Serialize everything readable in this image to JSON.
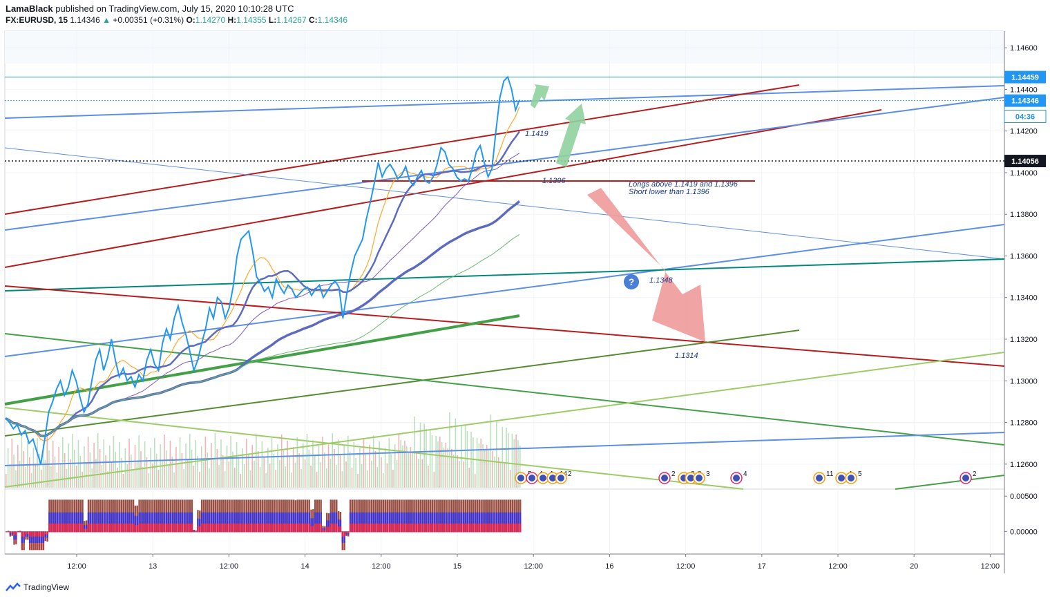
{
  "header": {
    "author": "LamaBlack",
    "published_text": "published on TradingView.com, July 15, 2020 10:10:28 UTC",
    "symbol": "FX:EURUSD, 15",
    "last": "1.14346",
    "change": "+0.00351 (+0.31%)",
    "o_label": "O:",
    "o": "1.14270",
    "h_label": "H:",
    "h": "1.14355",
    "l_label": "L:",
    "l": "1.14267",
    "c_label": "C:",
    "c": "1.14346"
  },
  "footer": {
    "brand": "TradingView"
  },
  "colors": {
    "price": "#2196f3",
    "support_red": "#b71c1c",
    "trend_blue": "#5b8ee6",
    "green": "#2e7d32",
    "teal": "#00897b",
    "arrow_green": "#8fd19e",
    "arrow_red": "#ef9a9a",
    "axis_text": "#131722",
    "marker_blue": "#2196f3"
  },
  "chart_data": {
    "type": "line",
    "symbol": "FX:EURUSD",
    "interval": "15",
    "ylim": [
      1.1248,
      1.1468
    ],
    "y_ticks": [
      "1.14600",
      "1.14400",
      "1.14200",
      "1.14000",
      "1.13800",
      "1.13600",
      "1.13400",
      "1.13200",
      "1.13000",
      "1.12800",
      "1.12600"
    ],
    "x_ticks": [
      "12:00",
      "13",
      "12:00",
      "14",
      "12:00",
      "15",
      "12:00",
      "16",
      "12:00",
      "17",
      "12:00",
      "20",
      "12:00"
    ],
    "price_markers": [
      {
        "label": "1.14459",
        "value": 1.14459,
        "style": "solid-blue"
      },
      {
        "label": "1.14346",
        "value": 1.14346,
        "style": "solid-blue"
      },
      {
        "label": "04:36",
        "value": 1.1431,
        "style": "countdown"
      },
      {
        "label": "1.14056",
        "value": 1.14056,
        "style": "dark"
      }
    ],
    "annotations": [
      {
        "text": "1.1419",
        "value": 1.1419
      },
      {
        "text": "1.1396",
        "value": 1.1396
      },
      {
        "text": "Longs above 1.1419 and 1.1396",
        "value": 1.1394
      },
      {
        "text": "Short lower than 1.1396",
        "value": 1.139
      },
      {
        "text": "1.1348",
        "value": 1.1348
      },
      {
        "text": "1.1314",
        "value": 1.1314
      }
    ],
    "price_series": [
      1.1282,
      1.128,
      1.1277,
      1.1279,
      1.1274,
      1.1276,
      1.127,
      1.1272,
      1.1266,
      1.126,
      1.1272,
      1.1285,
      1.129,
      1.1296,
      1.13,
      1.1293,
      1.1297,
      1.1305,
      1.13,
      1.1292,
      1.1285,
      1.1289,
      1.13,
      1.131,
      1.1315,
      1.1305,
      1.1311,
      1.132,
      1.131,
      1.1302,
      1.1306,
      1.13,
      1.1302,
      1.1297,
      1.1303,
      1.13,
      1.131,
      1.1315,
      1.1308,
      1.1305,
      1.1318,
      1.1325,
      1.132,
      1.133,
      1.1336,
      1.1328,
      1.1322,
      1.1314,
      1.1305,
      1.131,
      1.1318,
      1.1325,
      1.1335,
      1.133,
      1.134,
      1.1338,
      1.133,
      1.1335,
      1.1345,
      1.136,
      1.1368,
      1.137,
      1.1372,
      1.1362,
      1.135,
      1.1347,
      1.1343,
      1.1345,
      1.134,
      1.1349,
      1.1345,
      1.1342,
      1.1346,
      1.1344,
      1.134,
      1.1342,
      1.1344,
      1.1345,
      1.1341,
      1.1344,
      1.1346,
      1.134,
      1.1343,
      1.1346,
      1.1348,
      1.1345,
      1.133,
      1.1342,
      1.1352,
      1.136,
      1.1364,
      1.1368,
      1.1378,
      1.1386,
      1.1395,
      1.1405,
      1.1398,
      1.1402,
      1.1404,
      1.1401,
      1.1397,
      1.1399,
      1.1403,
      1.1396,
      1.1394,
      1.1398,
      1.1401,
      1.1396,
      1.1395,
      1.1398,
      1.1404,
      1.1412,
      1.141,
      1.1404,
      1.1402,
      1.1398,
      1.1396,
      1.1397,
      1.1396,
      1.1402,
      1.141,
      1.1413,
      1.1405,
      1.1398,
      1.1402,
      1.142,
      1.1436,
      1.1444,
      1.1446,
      1.144,
      1.143,
      1.1435
    ],
    "support_resistance": [
      1.1396
    ],
    "events": [
      {
        "label": "5",
        "count": 5
      },
      {
        "label": "4",
        "count": 4
      },
      {
        "label": "1",
        "count": 1
      },
      {
        "label": "14",
        "count": 14
      },
      {
        "label": "2",
        "count": 2
      },
      {
        "label": "2",
        "count": 2
      },
      {
        "label": "2",
        "count": 2
      },
      {
        "label": "8",
        "count": 8
      },
      {
        "label": "3",
        "count": 3
      },
      {
        "label": "4",
        "count": 4
      },
      {
        "label": "11",
        "count": 11
      },
      {
        "label": "4",
        "count": 4
      },
      {
        "label": "5",
        "count": 5
      },
      {
        "label": "2",
        "count": 2
      }
    ],
    "oscillator": {
      "ylim": [
        -0.0032,
        0.006
      ],
      "ticks": [
        "0.00500",
        "0.00000"
      ]
    }
  }
}
